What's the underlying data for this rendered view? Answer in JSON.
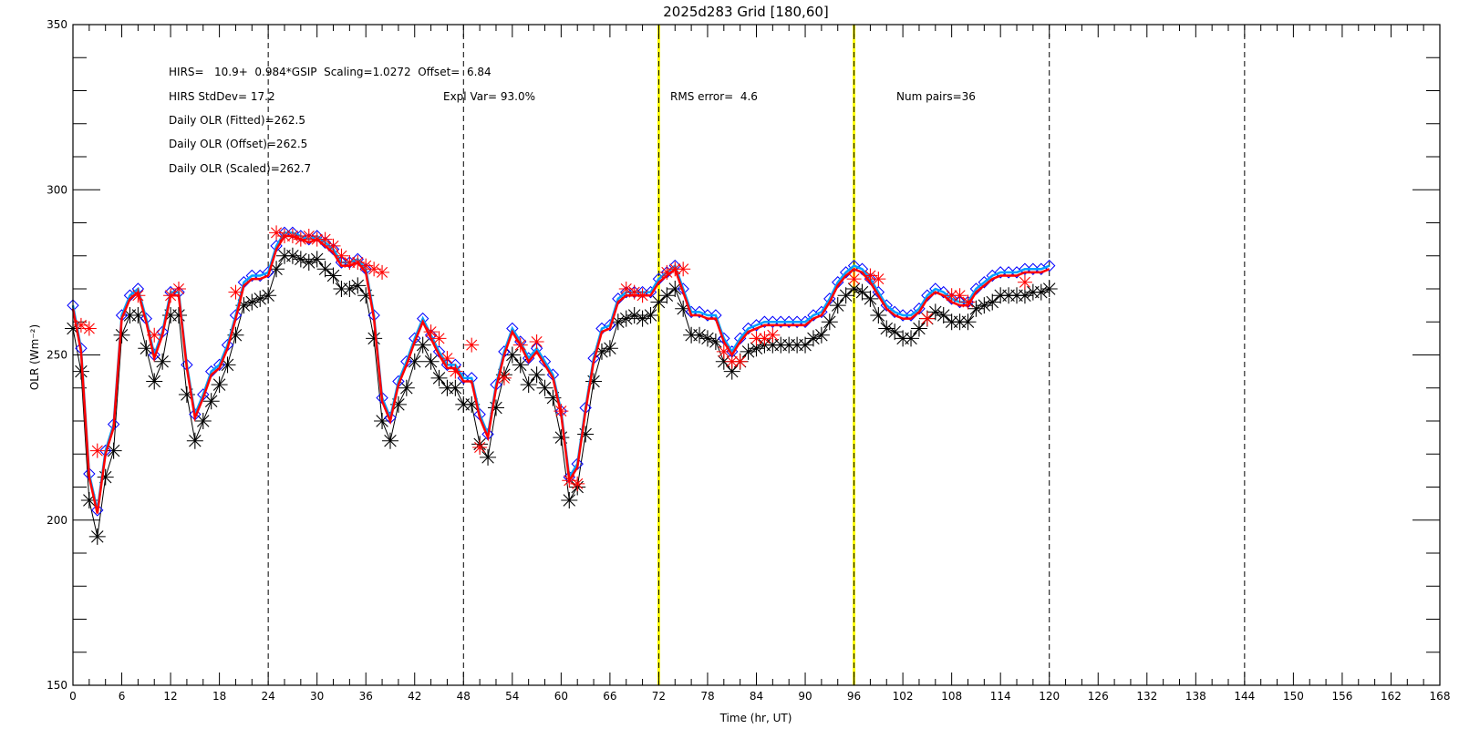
{
  "chart_data": {
    "type": "line",
    "title": "2025d283 Grid [180,60]",
    "xlabel": "Time (hr, UT)",
    "ylabel": "OLR (Wm⁻²)",
    "xlim": [
      0,
      168
    ],
    "ylim": [
      150,
      350
    ],
    "x_ticks": [
      0,
      6,
      12,
      18,
      24,
      30,
      36,
      42,
      48,
      54,
      60,
      66,
      72,
      78,
      84,
      90,
      96,
      102,
      108,
      114,
      120,
      126,
      132,
      138,
      144,
      150,
      156,
      162,
      168
    ],
    "y_ticks": [
      150,
      200,
      250,
      300,
      350
    ],
    "day_lines": [
      24,
      48,
      72,
      96,
      120,
      144
    ],
    "highlight_lines": [
      72,
      96
    ],
    "colors": {
      "gsip": "#000000",
      "hirs": "#ff0000",
      "fit": "#0000ff",
      "fit_line": "#00a0ff",
      "highlight": "#ffff00"
    },
    "annotations": [
      "HIRS=   10.9+  0.984*GSIP  Scaling=1.0272  Offset=  6.84",
      "HIRS StdDev= 17.2",
      "Expl Var= 93.0%",
      "RMS error=  4.6",
      "Num pairs=36",
      "Daily OLR (Fitted)=262.5",
      "Daily OLR (Offset)=262.5",
      "Daily OLR (Scaled)=262.7"
    ],
    "series": [
      {
        "marker": "asterisk",
        "x": [
          0,
          1,
          2,
          3,
          4,
          5,
          6,
          7,
          8,
          9,
          10,
          11,
          12,
          13,
          14,
          15,
          16,
          17,
          18,
          19,
          20,
          21,
          22,
          23,
          24,
          25,
          26,
          27,
          28,
          29,
          30,
          31,
          32,
          33,
          34,
          35,
          36,
          37,
          38,
          39,
          40,
          41,
          42,
          43,
          44,
          45,
          46,
          47,
          48,
          49,
          50,
          51,
          52,
          53,
          54,
          55,
          56,
          57,
          58,
          59,
          60,
          61,
          62,
          63,
          64,
          65,
          66,
          67,
          68,
          69,
          70,
          71,
          72,
          73,
          74,
          75,
          76,
          77,
          78,
          79,
          80,
          81,
          82,
          83,
          84,
          85,
          86,
          87,
          88,
          89,
          90,
          91,
          92,
          93,
          94,
          95,
          96,
          97,
          98,
          99,
          100,
          101,
          102,
          103,
          104,
          105,
          106,
          107,
          108,
          109,
          110,
          111,
          112,
          113,
          114,
          115,
          116,
          117,
          118,
          119,
          120
        ],
        "values": [
          258,
          245,
          206,
          195,
          213,
          221,
          256,
          262,
          262,
          252,
          242,
          248,
          262,
          262,
          238,
          224,
          230,
          236,
          241,
          247,
          256,
          265,
          266,
          267,
          268,
          276,
          280,
          280,
          279,
          278,
          279,
          276,
          274,
          270,
          270,
          271,
          268,
          255,
          230,
          224,
          235,
          240,
          248,
          253,
          248,
          243,
          240,
          240,
          235,
          235,
          223,
          219,
          234,
          244,
          250,
          247,
          241,
          244,
          240,
          237,
          225,
          206,
          210,
          226,
          242,
          251,
          252,
          260,
          261,
          262,
          261,
          262,
          266,
          268,
          270,
          264,
          256,
          256,
          255,
          254,
          248,
          245,
          248,
          251,
          252,
          253,
          253,
          253,
          253,
          253,
          253,
          255,
          256,
          260,
          265,
          268,
          270,
          269,
          267,
          262,
          258,
          257,
          255,
          255,
          258,
          261,
          263,
          262,
          260,
          260,
          260,
          264,
          265,
          266,
          268,
          268,
          268,
          268,
          269,
          269,
          270
        ]
      },
      {
        "marker": "diamond",
        "x": [
          0,
          1,
          2,
          3,
          4,
          5,
          6,
          7,
          8,
          9,
          10,
          11,
          12,
          13,
          14,
          15,
          16,
          17,
          18,
          19,
          20,
          21,
          22,
          23,
          24,
          25,
          26,
          27,
          28,
          29,
          30,
          31,
          32,
          33,
          34,
          35,
          36,
          37,
          38,
          39,
          40,
          41,
          42,
          43,
          44,
          45,
          46,
          47,
          48,
          49,
          50,
          51,
          52,
          53,
          54,
          55,
          56,
          57,
          58,
          59,
          60,
          61,
          62,
          63,
          64,
          65,
          66,
          67,
          68,
          69,
          70,
          71,
          72,
          73,
          74,
          75,
          76,
          77,
          78,
          79,
          80,
          81,
          82,
          83,
          84,
          85,
          86,
          87,
          88,
          89,
          90,
          91,
          92,
          93,
          94,
          95,
          96,
          97,
          98,
          99,
          100,
          101,
          102,
          103,
          104,
          105,
          106,
          107,
          108,
          109,
          110,
          111,
          112,
          113,
          114,
          115,
          116,
          117,
          118,
          119,
          120
        ],
        "values": [
          265,
          252,
          214,
          203,
          221,
          229,
          262,
          268,
          270,
          261,
          250,
          257,
          269,
          269,
          247,
          232,
          238,
          245,
          247,
          253,
          262,
          272,
          274,
          274,
          275,
          283,
          287,
          287,
          286,
          285,
          286,
          284,
          282,
          278,
          278,
          279,
          276,
          262,
          237,
          231,
          242,
          248,
          255,
          261,
          256,
          251,
          247,
          247,
          243,
          243,
          232,
          226,
          241,
          251,
          258,
          254,
          249,
          252,
          248,
          244,
          233,
          213,
          217,
          234,
          249,
          258,
          259,
          267,
          269,
          269,
          269,
          269,
          273,
          275,
          277,
          270,
          263,
          263,
          262,
          262,
          255,
          251,
          255,
          258,
          259,
          260,
          260,
          260,
          260,
          260,
          260,
          262,
          263,
          267,
          272,
          275,
          277,
          276,
          273,
          269,
          265,
          263,
          262,
          262,
          264,
          268,
          270,
          269,
          267,
          266,
          266,
          270,
          272,
          274,
          275,
          275,
          275,
          276,
          276,
          276,
          277
        ]
      },
      {
        "marker": "line",
        "x": [
          0,
          1,
          2,
          3,
          4,
          5,
          6,
          7,
          8,
          9,
          10,
          11,
          12,
          13,
          14,
          15,
          16,
          17,
          18,
          19,
          20,
          21,
          22,
          23,
          24,
          25,
          26,
          27,
          28,
          29,
          30,
          31,
          32,
          33,
          34,
          35,
          36,
          37,
          38,
          39,
          40,
          41,
          42,
          43,
          44,
          45,
          46,
          47,
          48,
          49,
          50,
          51,
          52,
          53,
          54,
          55,
          56,
          57,
          58,
          59,
          60,
          61,
          62,
          63,
          64,
          65,
          66,
          67,
          68,
          69,
          70,
          71,
          72,
          73,
          74,
          75,
          76,
          77,
          78,
          79,
          80,
          81,
          82,
          83,
          84,
          85,
          86,
          87,
          88,
          89,
          90,
          91,
          92,
          93,
          94,
          95,
          96,
          97,
          98,
          99,
          100,
          101,
          102,
          103,
          104,
          105,
          106,
          107,
          108,
          109,
          110,
          111,
          112,
          113,
          114,
          115,
          116,
          117,
          118,
          119,
          120
        ],
        "values": [
          265,
          252,
          214,
          203,
          221,
          229,
          262,
          268,
          270,
          261,
          250,
          257,
          269,
          269,
          247,
          232,
          238,
          245,
          247,
          253,
          262,
          272,
          274,
          274,
          275,
          283,
          287,
          287,
          286,
          285,
          286,
          284,
          282,
          278,
          278,
          279,
          276,
          262,
          237,
          231,
          242,
          248,
          255,
          261,
          256,
          251,
          247,
          247,
          243,
          243,
          232,
          226,
          241,
          251,
          258,
          254,
          249,
          252,
          248,
          244,
          233,
          213,
          217,
          234,
          249,
          258,
          259,
          267,
          269,
          269,
          269,
          269,
          273,
          275,
          277,
          270,
          263,
          263,
          262,
          262,
          255,
          251,
          255,
          258,
          259,
          260,
          260,
          260,
          260,
          260,
          260,
          262,
          263,
          267,
          272,
          275,
          277,
          276,
          273,
          269,
          265,
          263,
          262,
          262,
          264,
          268,
          270,
          269,
          267,
          266,
          266,
          270,
          272,
          274,
          275,
          275,
          275,
          276,
          276,
          276,
          277
        ]
      },
      {
        "marker": "line",
        "x": [
          0,
          1,
          2,
          3,
          4,
          5,
          6,
          7,
          8,
          9,
          10,
          11,
          12,
          13,
          14,
          15,
          16,
          17,
          18,
          19,
          20,
          21,
          22,
          23,
          24,
          25,
          26,
          27,
          28,
          29,
          30,
          31,
          32,
          33,
          34,
          35,
          36,
          37,
          38,
          39,
          40,
          41,
          42,
          43,
          44,
          45,
          46,
          47,
          48,
          49,
          50,
          51,
          52,
          53,
          54,
          55,
          56,
          57,
          58,
          59,
          60,
          61,
          62,
          63,
          64,
          65,
          66,
          67,
          68,
          69,
          70,
          71,
          72,
          73,
          74,
          75,
          76,
          77,
          78,
          79,
          80,
          81,
          82,
          83,
          84,
          85,
          86,
          87,
          88,
          89,
          90,
          91,
          92,
          93,
          94,
          95,
          96,
          97,
          98,
          99,
          100,
          101,
          102,
          103,
          104,
          105,
          106,
          107,
          108,
          109,
          110,
          111,
          112,
          113,
          114,
          115,
          116,
          117,
          118,
          119,
          120
        ],
        "values": [
          264,
          251,
          213,
          202,
          220,
          228,
          261,
          267,
          269,
          260,
          249,
          256,
          268,
          268,
          246,
          231,
          237,
          244,
          246,
          252,
          261,
          271,
          273,
          273,
          274,
          282,
          286,
          286,
          285,
          284,
          285,
          283,
          281,
          277,
          277,
          278,
          275,
          261,
          236,
          230,
          241,
          247,
          254,
          260,
          255,
          250,
          246,
          246,
          242,
          242,
          231,
          225,
          240,
          250,
          257,
          253,
          248,
          251,
          247,
          243,
          232,
          212,
          216,
          233,
          248,
          257,
          258,
          266,
          268,
          268,
          268,
          268,
          272,
          274,
          276,
          269,
          262,
          262,
          261,
          261,
          254,
          250,
          254,
          257,
          258,
          259,
          259,
          259,
          259,
          259,
          259,
          261,
          262,
          266,
          271,
          274,
          276,
          275,
          272,
          268,
          264,
          262,
          261,
          261,
          263,
          267,
          269,
          268,
          266,
          265,
          265,
          269,
          271,
          273,
          274,
          274,
          274,
          275,
          275,
          275,
          276
        ]
      },
      {
        "marker": "asterisk",
        "x": [
          1,
          2,
          3,
          8,
          10,
          12,
          13,
          20,
          25,
          26,
          27,
          28,
          29,
          30,
          31,
          32,
          33,
          34,
          35,
          36,
          37,
          38,
          44,
          45,
          46,
          47,
          49,
          50,
          53,
          55,
          57,
          60,
          61,
          62,
          68,
          69,
          70,
          73,
          74,
          75,
          80,
          81,
          82,
          84,
          85,
          86,
          96,
          98,
          99,
          105,
          108,
          109,
          110,
          117
        ],
        "values": [
          259,
          258,
          221,
          268,
          256,
          268,
          270,
          269,
          287,
          286,
          286,
          285,
          286,
          285,
          285,
          283,
          280,
          278,
          278,
          277,
          276,
          275,
          257,
          255,
          249,
          245,
          253,
          222,
          243,
          253,
          254,
          233,
          212,
          211,
          270,
          269,
          268,
          275,
          276,
          276,
          251,
          248,
          248,
          255,
          255,
          256,
          273,
          274,
          273,
          261,
          268,
          268,
          266,
          272
        ]
      }
    ]
  }
}
